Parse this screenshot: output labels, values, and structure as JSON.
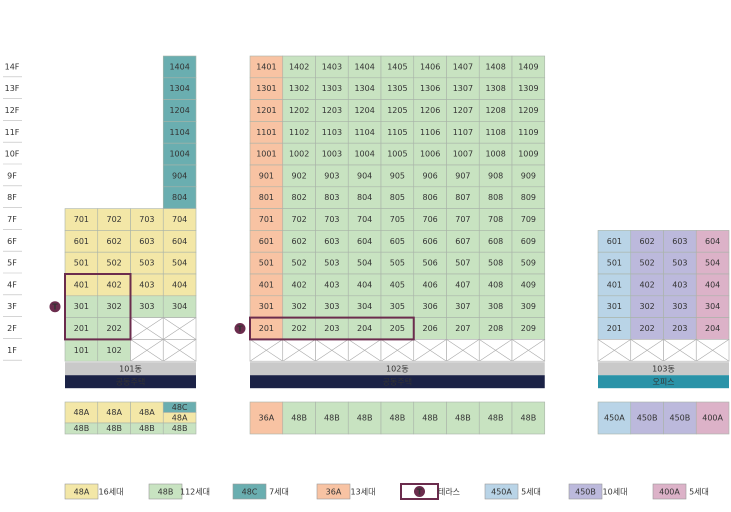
{
  "floors": [
    "14F",
    "13F",
    "12F",
    "11F",
    "10F",
    "9F",
    "8F",
    "7F",
    "6F",
    "5F",
    "4F",
    "3F",
    "2F",
    "1F"
  ],
  "buildings": [
    {
      "name": "101동",
      "category": "공동주택",
      "category_color": "#1b2246",
      "row_types": [
        "48C",
        "48C",
        "48C",
        "48C",
        "48C",
        "48C",
        "48C",
        "48A",
        "48A",
        "48A",
        "48A",
        "48B",
        "48B",
        "48B"
      ],
      "rows": [
        [
          null,
          null,
          null,
          "1404"
        ],
        [
          null,
          null,
          null,
          "1304"
        ],
        [
          null,
          null,
          null,
          "1204"
        ],
        [
          null,
          null,
          null,
          "1104"
        ],
        [
          null,
          null,
          null,
          "1004"
        ],
        [
          null,
          null,
          null,
          "904"
        ],
        [
          null,
          null,
          null,
          "804"
        ],
        [
          "701",
          "702",
          "703",
          "704"
        ],
        [
          "601",
          "602",
          "603",
          "604"
        ],
        [
          "501",
          "502",
          "503",
          "504"
        ],
        [
          "401",
          "402",
          "403",
          "404"
        ],
        [
          "301",
          "302",
          "303",
          "304"
        ],
        [
          "201",
          "202",
          null,
          null
        ],
        [
          "101",
          "102",
          null,
          null
        ]
      ],
      "terrace": [
        "401",
        "402",
        "301",
        "302",
        "201",
        "202"
      ],
      "bottom": [
        [
          "48A",
          "48B"
        ],
        [
          "48A",
          "48B"
        ],
        [
          "48A",
          "48B"
        ],
        [
          "48C",
          "48A",
          "48B"
        ]
      ]
    },
    {
      "name": "102동",
      "category": "공동주택",
      "category_color": "#1b2246",
      "column_types": [
        "36A",
        "48B",
        "48B",
        "48B",
        "48B",
        "48B",
        "48B",
        "48B",
        "48B"
      ],
      "rows": [
        [
          "1401",
          "1402",
          "1403",
          "1404",
          "1405",
          "1406",
          "1407",
          "1408",
          "1409"
        ],
        [
          "1301",
          "1302",
          "1303",
          "1304",
          "1305",
          "1306",
          "1307",
          "1308",
          "1309"
        ],
        [
          "1201",
          "1202",
          "1203",
          "1204",
          "1205",
          "1206",
          "1207",
          "1208",
          "1209"
        ],
        [
          "1101",
          "1102",
          "1103",
          "1104",
          "1105",
          "1106",
          "1107",
          "1108",
          "1109"
        ],
        [
          "1001",
          "1002",
          "1003",
          "1004",
          "1005",
          "1006",
          "1007",
          "1008",
          "1009"
        ],
        [
          "901",
          "902",
          "903",
          "904",
          "905",
          "906",
          "907",
          "908",
          "909"
        ],
        [
          "801",
          "802",
          "803",
          "804",
          "805",
          "806",
          "807",
          "808",
          "809"
        ],
        [
          "701",
          "702",
          "703",
          "704",
          "705",
          "706",
          "707",
          "708",
          "709"
        ],
        [
          "601",
          "602",
          "603",
          "604",
          "605",
          "606",
          "607",
          "608",
          "609"
        ],
        [
          "501",
          "502",
          "503",
          "504",
          "505",
          "506",
          "507",
          "508",
          "509"
        ],
        [
          "401",
          "402",
          "403",
          "404",
          "405",
          "406",
          "407",
          "408",
          "409"
        ],
        [
          "301",
          "302",
          "303",
          "304",
          "305",
          "306",
          "307",
          "308",
          "309"
        ],
        [
          "201",
          "202",
          "203",
          "204",
          "205",
          "206",
          "207",
          "208",
          "209"
        ],
        [
          null,
          null,
          null,
          null,
          null,
          null,
          null,
          null,
          null
        ]
      ],
      "terrace": [
        "201",
        "202",
        "203",
        "204",
        "205"
      ],
      "bottom": [
        [
          "36A"
        ],
        [
          "48B"
        ],
        [
          "48B"
        ],
        [
          "48B"
        ],
        [
          "48B"
        ],
        [
          "48B"
        ],
        [
          "48B"
        ],
        [
          "48B"
        ],
        [
          "48B"
        ]
      ]
    },
    {
      "name": "103동",
      "category": "오피스",
      "category_color": "#2a93a8",
      "column_types": [
        "450A",
        "450B",
        "450B",
        "400A"
      ],
      "rows": [
        [
          null,
          null,
          null,
          null
        ],
        [
          null,
          null,
          null,
          null
        ],
        [
          null,
          null,
          null,
          null
        ],
        [
          null,
          null,
          null,
          null
        ],
        [
          null,
          null,
          null,
          null
        ],
        [
          null,
          null,
          null,
          null
        ],
        [
          null,
          null,
          null,
          null
        ],
        [
          null,
          null,
          null,
          null
        ],
        [
          "601",
          "602",
          "603",
          "604"
        ],
        [
          "501",
          "502",
          "503",
          "504"
        ],
        [
          "401",
          "402",
          "403",
          "404"
        ],
        [
          "301",
          "302",
          "303",
          "304"
        ],
        [
          "201",
          "202",
          "203",
          "204"
        ],
        [
          null,
          null,
          null,
          null
        ]
      ],
      "terrace": [],
      "bottom": [
        [
          "450A"
        ],
        [
          "450B"
        ],
        [
          "450B"
        ],
        [
          "400A"
        ]
      ]
    }
  ],
  "legend": [
    {
      "type": "48A",
      "count": "16세대",
      "color": "#f3e7a7"
    },
    {
      "type": "48B",
      "count": "112세대",
      "color": "#c8e3c1"
    },
    {
      "type": "48C",
      "count": "7세대",
      "color": "#6aaeb0"
    },
    {
      "type": "36A",
      "count": "13세대",
      "color": "#f8c3a3"
    },
    {
      "symbol": "T",
      "count": "테라스",
      "color": "#6b2c4d"
    },
    {
      "type": "450A",
      "count": "5세대",
      "color": "#b9d4e7"
    },
    {
      "type": "450B",
      "count": "10세대",
      "color": "#bcb9dc"
    },
    {
      "type": "400A",
      "count": "5세대",
      "color": "#dcb2c8"
    }
  ]
}
